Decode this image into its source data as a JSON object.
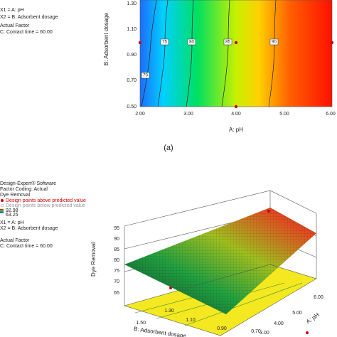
{
  "panel_a": {
    "legend": [
      "X1 = A: pH",
      "X2 = B: Adsorbent dosage",
      "Actual Factor",
      "C: Contact time = 60.00"
    ],
    "y_axis": {
      "label": "B: Adsorbent dosage",
      "ticks": [
        "1.30",
        "1.10",
        "0.90",
        "0.70",
        "0.50"
      ]
    },
    "x_axis": {
      "label": "A: pH",
      "ticks": [
        "2.00",
        "3.00",
        "4.00",
        "5.00",
        "6.00"
      ]
    },
    "contour_labels": [
      "70",
      "75",
      "80",
      "85",
      "90"
    ],
    "caption": "(a)"
  },
  "panel_b": {
    "legend": [
      "Design-Expert® Software",
      "Factor Coding: Actual",
      "Dye Removal",
      "Design points above predicted value",
      "Design points below predicted value",
      "92.98",
      "63.25",
      "X1 = A: pH",
      "X2 = B: Adsorbent dosage",
      "Actual Factor",
      "C: Contact time = 60.00"
    ],
    "z_axis": {
      "label": "Dye Removal",
      "ticks": [
        "95",
        "90",
        "85",
        "80",
        "75",
        "70",
        "65"
      ]
    },
    "b_axis": {
      "label": "B: Adsorbent dosage",
      "ticks": [
        "1.50",
        "1.30",
        "1.10",
        "0.90",
        "0.70"
      ]
    },
    "a_axis": {
      "label": "A: pH",
      "ticks": [
        "6.00",
        "5.00",
        "4.00",
        "3.00"
      ]
    }
  }
}
